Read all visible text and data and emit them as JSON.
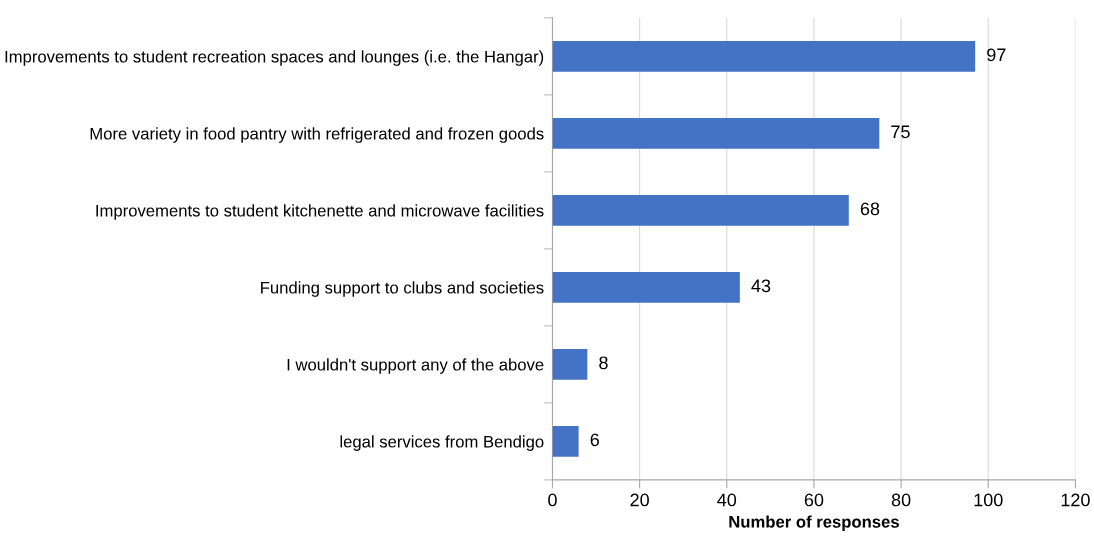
{
  "chart_data": {
    "type": "bar",
    "orientation": "horizontal",
    "categories": [
      "Improvements to student recreation spaces and lounges (i.e. the Hangar)",
      "More variety in food pantry with refrigerated and frozen goods",
      "Improvements to student kitchenette and microwave facilities",
      "Funding support to clubs and societies",
      "I wouldn't support any of the above",
      "legal services from Bendigo"
    ],
    "values": [
      97,
      75,
      68,
      43,
      8,
      6
    ],
    "color": "#4472c4",
    "xlabel": "Number of responses",
    "xlim": [
      0,
      120
    ],
    "xticks": [
      0,
      20,
      40,
      60,
      80,
      100,
      120
    ],
    "grid": "x",
    "data_labels": true
  }
}
